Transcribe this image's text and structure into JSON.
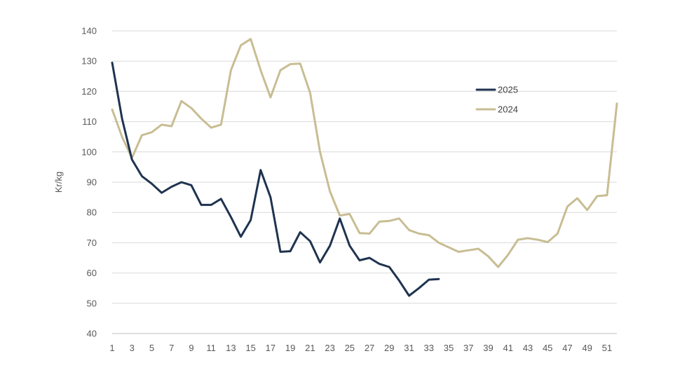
{
  "chart_data": {
    "type": "line",
    "ylabel": "Kr/kg",
    "xlabel": "",
    "ylim": [
      40,
      140
    ],
    "yticks": [
      "40",
      "50",
      "60",
      "70",
      "80",
      "90",
      "100",
      "110",
      "120",
      "130",
      "140"
    ],
    "xlim": [
      1,
      52
    ],
    "xticks": [
      "1",
      "3",
      "5",
      "7",
      "9",
      "11",
      "13",
      "15",
      "17",
      "19",
      "21",
      "23",
      "25",
      "27",
      "29",
      "31",
      "33",
      "35",
      "37",
      "39",
      "41",
      "43",
      "45",
      "47",
      "49",
      "51"
    ],
    "grid": true,
    "legend_position": "top-right",
    "series": [
      {
        "name": "2025",
        "color": "#1f3350",
        "x": [
          1,
          2,
          3,
          4,
          5,
          6,
          7,
          8,
          9,
          10,
          11,
          12,
          13,
          14,
          15,
          16,
          17,
          18,
          19,
          20,
          21,
          22,
          23,
          24,
          25,
          26,
          27,
          28,
          29,
          30,
          31,
          32,
          33,
          34
        ],
        "y": [
          129.5,
          111,
          97.5,
          92,
          89.5,
          86.5,
          88.5,
          90,
          89,
          82.5,
          82.5,
          84.5,
          78.5,
          72,
          77.5,
          94,
          85,
          67,
          67.2,
          73.5,
          70.5,
          63.5,
          69,
          78,
          69,
          64.2,
          65,
          63,
          62,
          57.5,
          52.5,
          55,
          57.8,
          58
        ]
      },
      {
        "name": "2024",
        "color": "#c8bd93",
        "x": [
          1,
          2,
          3,
          4,
          5,
          6,
          7,
          8,
          9,
          10,
          11,
          12,
          13,
          14,
          15,
          16,
          17,
          18,
          19,
          20,
          21,
          22,
          23,
          24,
          25,
          26,
          27,
          28,
          29,
          30,
          31,
          32,
          33,
          34,
          35,
          36,
          37,
          38,
          39,
          40,
          41,
          42,
          43,
          44,
          45,
          46,
          47,
          48,
          49,
          50,
          51,
          52
        ],
        "y": [
          114,
          105,
          98,
          105.5,
          106.5,
          109,
          108.5,
          116.8,
          114.5,
          111,
          108,
          109,
          127,
          135.2,
          137.3,
          127,
          118,
          127,
          129,
          129.2,
          119.5,
          100,
          87,
          79,
          79.5,
          73.2,
          73,
          77,
          77.2,
          78,
          74.2,
          73,
          72.5,
          70,
          68.5,
          67,
          67.5,
          68,
          65.5,
          62,
          66,
          71,
          71.5,
          71,
          70.2,
          73,
          82,
          84.7,
          80.8,
          85.4,
          85.7,
          116
        ]
      }
    ]
  }
}
